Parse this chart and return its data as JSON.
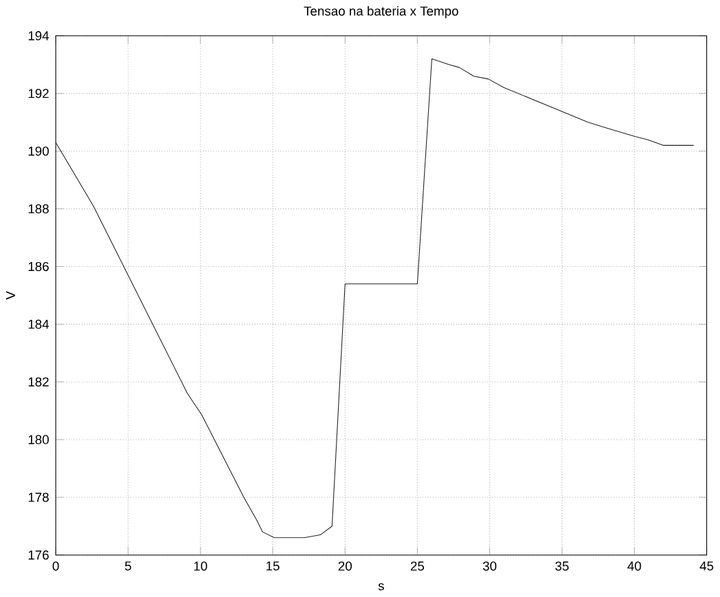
{
  "chart_data": {
    "type": "line",
    "title": "Tensao na bateria x Tempo",
    "xlabel": "s",
    "ylabel": "V",
    "xlim": [
      0,
      45
    ],
    "ylim": [
      176,
      194
    ],
    "xticks": [
      0,
      5,
      10,
      15,
      20,
      25,
      30,
      35,
      40,
      45
    ],
    "yticks": [
      176,
      178,
      180,
      182,
      184,
      186,
      188,
      190,
      192,
      194
    ],
    "grid": true,
    "marker": "none",
    "line_style": "solid",
    "series": [
      {
        "color": "#222222",
        "x": [
          0,
          2.6,
          9.1,
          10.1,
          13,
          13.9,
          14.3,
          15.1,
          17.2,
          18.3,
          19.1,
          20,
          25,
          26,
          27.2,
          27.9,
          28.9,
          29.9,
          31,
          36.8,
          38.1,
          40.1,
          40.9,
          42,
          44.1
        ],
        "values": [
          190.3,
          188.1,
          181.6,
          180.85,
          178,
          177.2,
          176.8,
          176.6,
          176.6,
          176.7,
          177,
          185.4,
          185.4,
          193.2,
          193,
          192.9,
          192.6,
          192.5,
          192.2,
          191,
          190.8,
          190.5,
          190.4,
          190.2,
          190.2
        ]
      }
    ]
  }
}
